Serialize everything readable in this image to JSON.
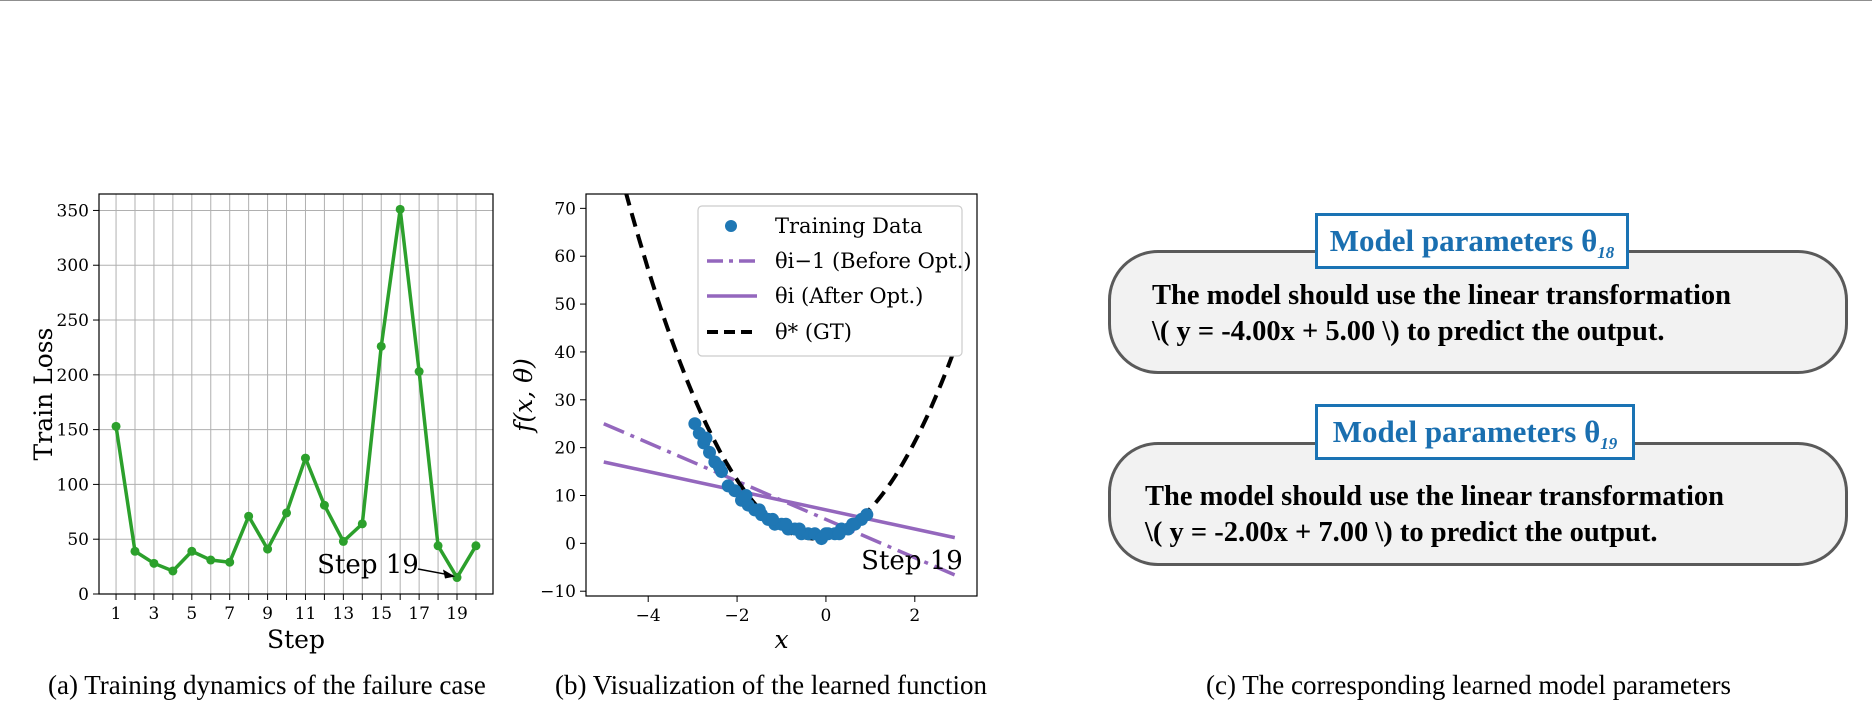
{
  "chart_data": [
    {
      "type": "line",
      "xlabel": "Step",
      "ylabel": "Train Loss",
      "x": [
        1,
        2,
        3,
        4,
        5,
        6,
        7,
        8,
        9,
        10,
        11,
        12,
        13,
        14,
        15,
        16,
        17,
        18,
        19,
        20
      ],
      "series": [
        {
          "values": [
            153,
            39,
            28,
            21,
            39,
            31,
            29,
            71,
            41,
            74,
            124,
            81,
            48,
            64,
            226,
            351,
            203,
            44,
            15,
            44
          ],
          "color": "#2ca02c"
        }
      ],
      "xticks": [
        1,
        3,
        5,
        7,
        9,
        11,
        13,
        15,
        17,
        19
      ],
      "yticks": [
        0,
        50,
        100,
        150,
        200,
        250,
        300,
        350
      ],
      "xlim": [
        0.1,
        20.9
      ],
      "ylim": [
        0,
        365
      ],
      "grid": true,
      "annotation": {
        "text": "Step 19",
        "x": 19,
        "y": 15
      }
    },
    {
      "type": "scatter",
      "xlabel": "x",
      "ylabel": "f(x, θ)",
      "xlim": [
        -5.4,
        3.4
      ],
      "ylim": [
        -11,
        73
      ],
      "xticks": [
        -4,
        -2,
        0,
        2
      ],
      "yticks": [
        -10,
        0,
        10,
        20,
        30,
        40,
        50,
        60,
        70
      ],
      "grid": false,
      "legend_position": "upper-right",
      "legend": [
        "Training Data",
        "θi−1 (Before Opt.)",
        "θi (After Opt.)",
        "θ* (GT)"
      ],
      "training_data": {
        "color": "#1f77b4",
        "x": [
          -2.95,
          -2.85,
          -2.75,
          -2.62,
          -2.5,
          -2.35,
          -2.2,
          -2.05,
          -1.9,
          -1.75,
          -1.6,
          -1.45,
          -1.3,
          -1.15,
          -1.0,
          -0.85,
          -0.7,
          -0.55,
          -0.4,
          -0.25,
          -0.1,
          0.05,
          0.2,
          0.35,
          0.5,
          0.65,
          0.8,
          0.92,
          -2.4,
          -1.8,
          -1.2,
          -0.6,
          0.0,
          0.6,
          -2.7,
          -1.5,
          -0.9,
          0.3
        ],
        "y": [
          25,
          23,
          21,
          19,
          17,
          15,
          12,
          11,
          9,
          8,
          7,
          6,
          5,
          4,
          4,
          3,
          3,
          2,
          2,
          2,
          1,
          2,
          2,
          3,
          3,
          4,
          5,
          6,
          16,
          10,
          5,
          3,
          2,
          4,
          22,
          7,
          4,
          2
        ]
      },
      "lines": [
        {
          "name": "θi−1 (Before Opt.)",
          "style": "dashdot",
          "color": "#9467bd",
          "slope": -4.0,
          "intercept": 5.0,
          "x_range": [
            -5,
            2.9
          ]
        },
        {
          "name": "θi (After Opt.)",
          "style": "solid",
          "color": "#9467bd",
          "slope": -2.0,
          "intercept": 7.0,
          "x_range": [
            -5,
            2.9
          ]
        },
        {
          "name": "θ* (GT)",
          "style": "dashed",
          "color": "#000000",
          "curve": "4(x+0.25)^2+1",
          "x_range": [
            -5,
            2.9
          ]
        }
      ],
      "annotation": {
        "text": "Step 19"
      }
    }
  ],
  "captions": {
    "a": "(a) Training dynamics of the failure case",
    "b": "(b) Visualization of the learned function",
    "c": "(c) The corresponding learned model parameters"
  },
  "cards": [
    {
      "tag_text": "Model parameters θ",
      "tag_sub": "18",
      "line1": "The model should use the linear transformation",
      "line2": "\\( y = -4.00x + 5.00 \\) to predict the output."
    },
    {
      "tag_text": "Model parameters θ",
      "tag_sub": "19",
      "line1": "The model should use the linear transformation",
      "line2": "\\( y = -2.00x + 7.00 \\) to predict the output."
    }
  ],
  "colors": {
    "loss_line": "#2ca02c",
    "data_points": "#1f77b4",
    "fit_lines": "#9467bd",
    "tag_border": "#1a73b4"
  }
}
